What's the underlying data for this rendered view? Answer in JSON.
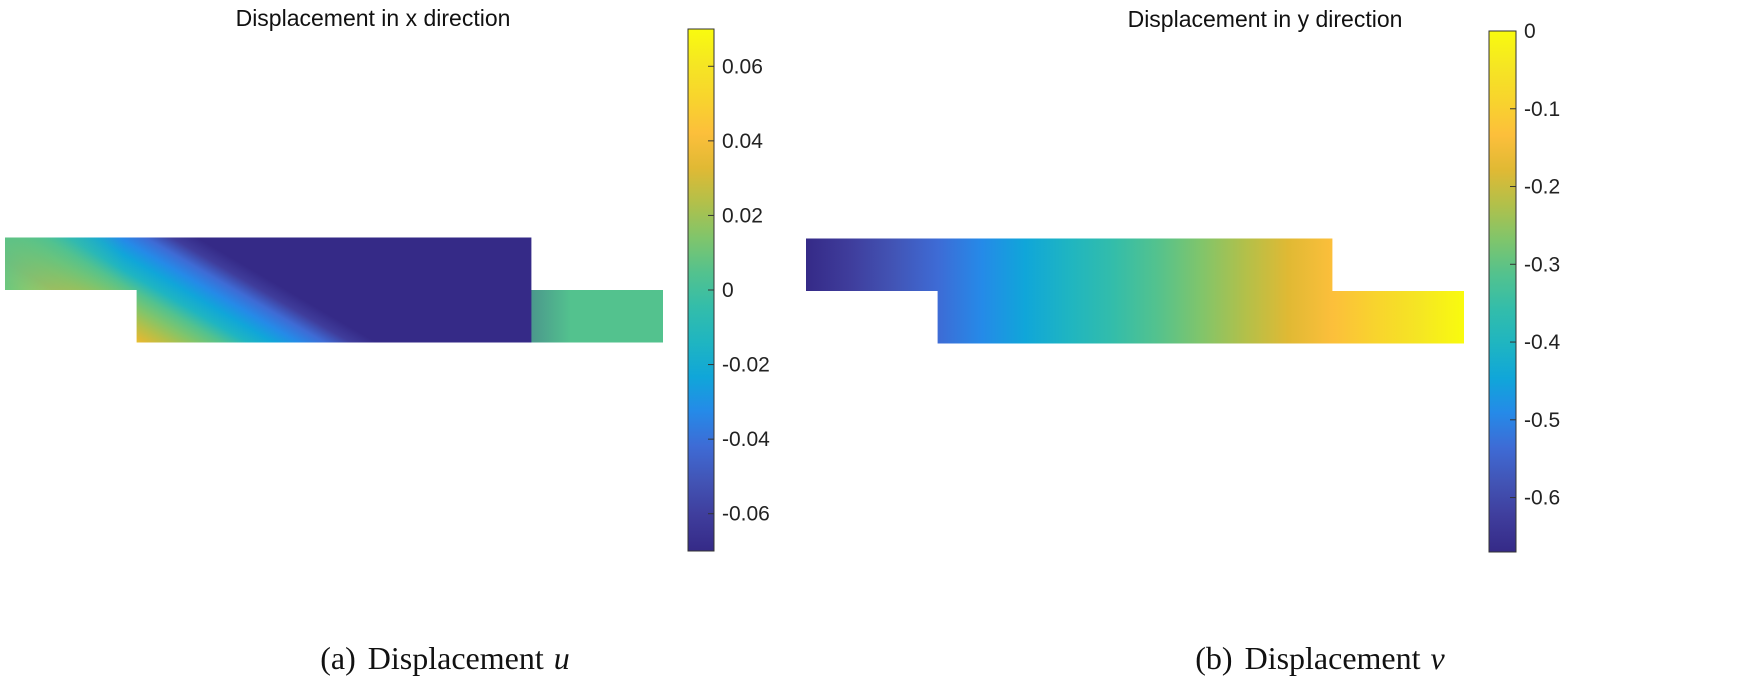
{
  "chart_data": [
    {
      "type": "heatmap",
      "panel_tag": "(a)",
      "caption": "Displacement",
      "caption_symbol": "u",
      "title": "Displacement in x direction",
      "colormap": "parula",
      "colorbar": {
        "clim": [
          -0.07,
          0.07
        ],
        "ticks": [
          0.06,
          0.04,
          0.02,
          0,
          -0.02,
          -0.04,
          -0.06
        ],
        "tick_labels": [
          "0.06",
          "0.04",
          "0.02",
          "0",
          "-0.02",
          "-0.04",
          "-0.06"
        ]
      },
      "domain": {
        "upper_block_x": [
          0,
          4
        ],
        "lower_block_x": [
          1,
          5
        ],
        "block_height": 0.4
      },
      "field": {
        "pattern": "skew-bands",
        "top_value": -0.07,
        "bottom_value": 0.07,
        "right_end_value": 0.005
      },
      "grid": false
    },
    {
      "type": "heatmap",
      "panel_tag": "(b)",
      "caption": "Displacement",
      "caption_symbol": "v",
      "title": "Displacement in y direction",
      "colormap": "parula",
      "colorbar": {
        "clim": [
          -0.67,
          0
        ],
        "ticks": [
          0,
          -0.1,
          -0.2,
          -0.3,
          -0.4,
          -0.5,
          -0.6
        ],
        "tick_labels": [
          "0",
          "-0.1",
          "-0.2",
          "-0.3",
          "-0.4",
          "-0.5",
          "-0.6"
        ]
      },
      "domain": {
        "upper_block_x": [
          0,
          4
        ],
        "lower_block_x": [
          1,
          5
        ],
        "block_height": 0.4
      },
      "field": {
        "pattern": "horizontal-gradient",
        "left_value": -0.67,
        "right_value": 0
      },
      "grid": false
    }
  ]
}
